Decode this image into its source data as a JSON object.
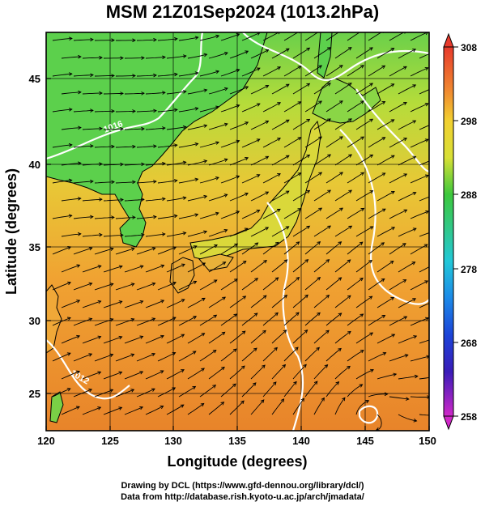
{
  "title": "MSM 21Z01Sep2024 (1013.2hPa)",
  "map": {
    "x_axis": {
      "label": "Longitude (degrees)",
      "range": [
        120,
        150
      ],
      "ticks": [
        120,
        125,
        130,
        135,
        140,
        145,
        150
      ],
      "tick_labels": [
        "120",
        "125",
        "130",
        "135",
        "140",
        "145",
        "150"
      ]
    },
    "y_axis": {
      "label": "Latitude  (degrees)",
      "range": [
        22.4,
        47.6
      ],
      "ticks": [
        25,
        30,
        35,
        40,
        45
      ],
      "tick_labels": [
        "25",
        "30",
        "35",
        "40",
        "45"
      ]
    },
    "gridlines": true,
    "field": "temperature (K), shaded",
    "overlay": "streamlines (wind) and white isobar contours",
    "colors": {
      "land_low": "#22c24a",
      "warm": "#f0a030",
      "sea_hot": "#e87820",
      "contour": "#ffffff",
      "streamline": "#000000"
    },
    "contour_labels": [
      {
        "text": "1016",
        "lon": 125.5,
        "lat": 41.3
      },
      {
        "text": "1012",
        "lon": 122.5,
        "lat": 25.5
      }
    ]
  },
  "colorbar": {
    "min": 258,
    "max": 308,
    "labels": [
      "308",
      "298",
      "288",
      "278",
      "268",
      "258"
    ]
  },
  "credits": {
    "line1": "Drawing by DCL (https://www.gfd-dennou.org/library/dcl/)",
    "line2": "Data from http://database.rish.kyoto-u.ac.jp/arch/jmadata/"
  }
}
